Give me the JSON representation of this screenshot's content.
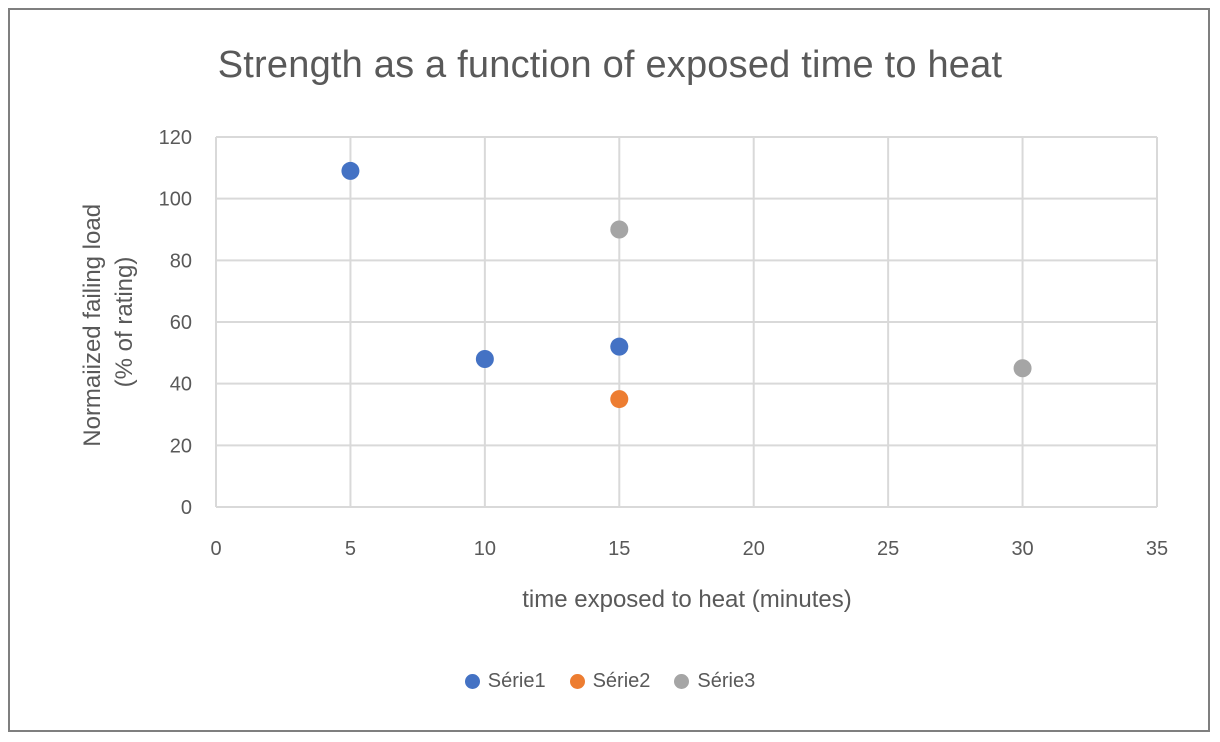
{
  "chart_data": {
    "type": "scatter",
    "title": "Strength as a function of exposed time to heat",
    "xlabel": "time exposed to heat (minutes)",
    "ylabel_lines": [
      "Normaiized failing load",
      "(% of rating)"
    ],
    "xlim": [
      0,
      35
    ],
    "ylim": [
      0,
      120
    ],
    "x_ticks": [
      0,
      5,
      10,
      15,
      20,
      25,
      30,
      35
    ],
    "y_ticks": [
      0,
      20,
      40,
      60,
      80,
      100,
      120
    ],
    "grid": true,
    "legend_position": "bottom",
    "series": [
      {
        "name": "Série1",
        "color": "#4472c4",
        "points": [
          {
            "x": 5,
            "y": 109
          },
          {
            "x": 10,
            "y": 48
          },
          {
            "x": 15,
            "y": 52
          }
        ]
      },
      {
        "name": "Série2",
        "color": "#ed7d31",
        "points": [
          {
            "x": 15,
            "y": 35
          }
        ]
      },
      {
        "name": "Série3",
        "color": "#a5a5a5",
        "points": [
          {
            "x": 15,
            "y": 90
          },
          {
            "x": 30,
            "y": 45
          }
        ]
      }
    ]
  }
}
